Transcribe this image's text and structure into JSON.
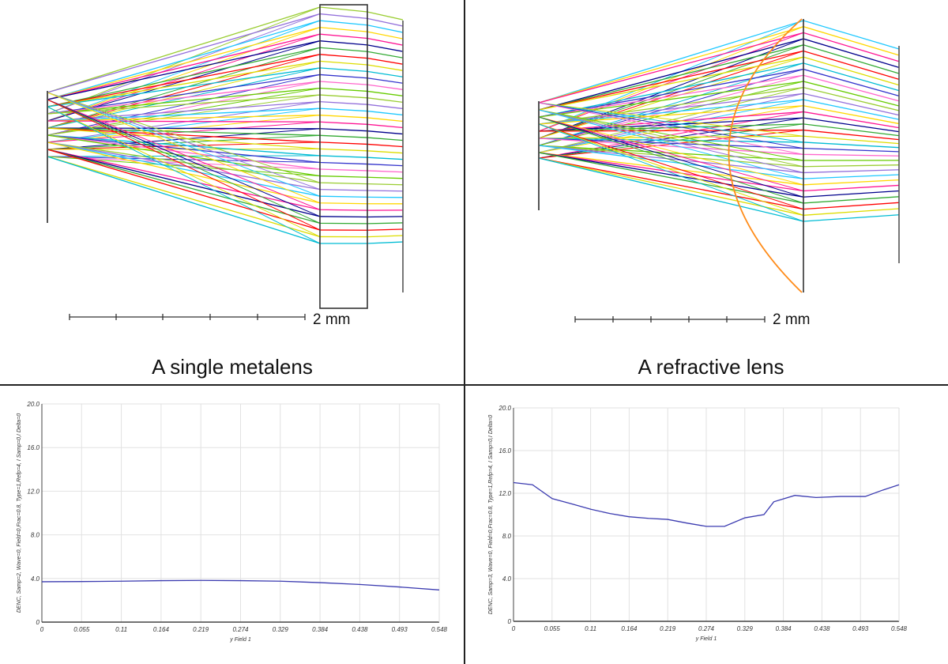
{
  "panels": {
    "metalens": {
      "caption": "A single metalens",
      "scale_label": "2 mm"
    },
    "refractive": {
      "caption": "A refractive lens",
      "scale_label": "2 mm"
    }
  },
  "ray_colors": [
    "#9acd32",
    "#9370db",
    "#1ec8ff",
    "#ffd700",
    "#ff1493",
    "#00008b",
    "#33aa33",
    "#ff0000",
    "#dddd00",
    "#00bcd4",
    "#3333cc",
    "#ff66cc",
    "#66cc00"
  ],
  "lens_color": "#ff8c1a",
  "chart_data": [
    {
      "type": "line",
      "title": "",
      "ylabel": "DENC, Samp=2, Wave=0, Field=0,Frac=0.8, Type=1,Refp=4, I Samp=0,I Delta=0",
      "xlabel": "y Field 1",
      "ylim": [
        0,
        20
      ],
      "y_ticks": [
        "0",
        "4.0",
        "8.0",
        "12.0",
        "16.0",
        "20.0"
      ],
      "x_ticks": [
        "0",
        "0.055",
        "0.11",
        "0.164",
        "0.219",
        "0.274",
        "0.329",
        "0.384",
        "0.438",
        "0.493",
        "0.548"
      ],
      "xlim": [
        0,
        0.548
      ],
      "series": [
        {
          "name": "DENC",
          "color": "#3b3bb0",
          "x": [
            0,
            0.055,
            0.11,
            0.164,
            0.219,
            0.274,
            0.329,
            0.384,
            0.438,
            0.493,
            0.548
          ],
          "y": [
            3.7,
            3.72,
            3.75,
            3.8,
            3.82,
            3.8,
            3.75,
            3.62,
            3.45,
            3.22,
            2.95
          ]
        }
      ]
    },
    {
      "type": "line",
      "title": "",
      "ylabel": "DENC, Samp=3, Wave=0, Field=0,Frac=0.8, Type=1,Refp=4, I Samp=0,I Delta=0",
      "xlabel": "y Field 1",
      "ylim": [
        0,
        20
      ],
      "y_ticks": [
        "0",
        "4.0",
        "8.0",
        "12.0",
        "16.0",
        "20.0"
      ],
      "x_ticks": [
        "0",
        "0.055",
        "0.11",
        "0.164",
        "0.219",
        "0.274",
        "0.329",
        "0.384",
        "0.438",
        "0.493",
        "0.548"
      ],
      "xlim": [
        0,
        0.548
      ],
      "series": [
        {
          "name": "DENC",
          "color": "#3b3bb0",
          "x": [
            0,
            0.027,
            0.055,
            0.083,
            0.11,
            0.137,
            0.164,
            0.192,
            0.219,
            0.247,
            0.274,
            0.3,
            0.329,
            0.356,
            0.37,
            0.4,
            0.43,
            0.465,
            0.5,
            0.525,
            0.548
          ],
          "y": [
            13.0,
            12.8,
            11.5,
            11.0,
            10.5,
            10.1,
            9.8,
            9.65,
            9.55,
            9.2,
            8.9,
            8.9,
            9.7,
            10.0,
            11.2,
            11.8,
            11.6,
            11.7,
            11.7,
            12.3,
            12.8
          ]
        }
      ]
    }
  ]
}
